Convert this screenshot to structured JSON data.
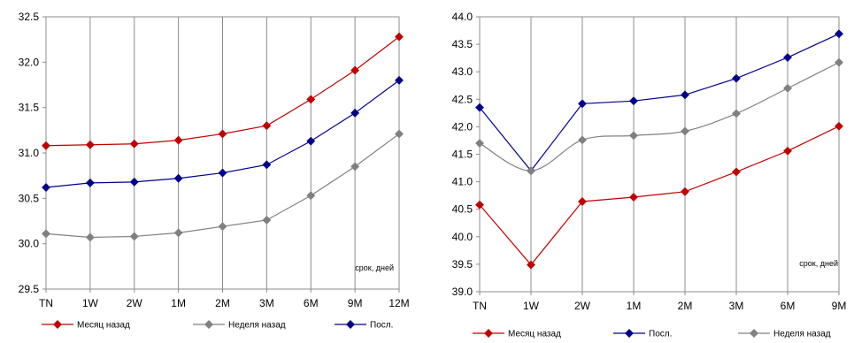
{
  "chart_data": [
    {
      "type": "line",
      "categories": [
        "TN",
        "1W",
        "2W",
        "1M",
        "2M",
        "3M",
        "6M",
        "9M",
        "12M"
      ],
      "ylim": [
        29.5,
        32.5
      ],
      "yticks": [
        "29.5",
        "30.0",
        "30.5",
        "31.0",
        "31.5",
        "32.0",
        "32.5"
      ],
      "yticks_values": [
        29.5,
        30.0,
        30.5,
        31.0,
        31.5,
        32.0,
        32.5
      ],
      "grid": "vertical",
      "annotation": "срок, дней",
      "legend_position": "bottom",
      "series": [
        {
          "name": "Месяц назад",
          "color": "#c00000",
          "smooth": false,
          "values": [
            31.08,
            31.09,
            31.1,
            31.14,
            31.21,
            31.3,
            31.59,
            31.91,
            32.28
          ]
        },
        {
          "name": "Неделя назад",
          "color": "#808080",
          "smooth": false,
          "values": [
            30.11,
            30.07,
            30.08,
            30.12,
            30.19,
            30.26,
            30.53,
            30.85,
            31.21
          ]
        },
        {
          "name": "Посл.",
          "color": "#00008b",
          "smooth": false,
          "values": [
            30.62,
            30.67,
            30.68,
            30.72,
            30.78,
            30.87,
            31.13,
            31.44,
            31.8
          ]
        }
      ]
    },
    {
      "type": "line",
      "categories": [
        "TN",
        "1W",
        "2W",
        "1M",
        "2M",
        "3M",
        "6M",
        "9M"
      ],
      "ylim": [
        39.0,
        44.0
      ],
      "yticks": [
        "39.0",
        "39.5",
        "40.0",
        "40.5",
        "41.0",
        "41.5",
        "42.0",
        "42.5",
        "43.0",
        "43.5",
        "44.0"
      ],
      "yticks_values": [
        39.0,
        39.5,
        40.0,
        40.5,
        41.0,
        41.5,
        42.0,
        42.5,
        43.0,
        43.5,
        44.0
      ],
      "grid": "vertical",
      "annotation": "срок, дней",
      "legend_position": "bottom",
      "series": [
        {
          "name": "Месяц назад",
          "color": "#c00000",
          "smooth": false,
          "values": [
            40.58,
            39.49,
            40.64,
            40.72,
            40.82,
            41.18,
            41.56,
            42.01
          ]
        },
        {
          "name": "Посл.",
          "color": "#00008b",
          "smooth": false,
          "values": [
            42.35,
            41.2,
            42.42,
            42.47,
            42.58,
            42.88,
            43.26,
            43.69
          ]
        },
        {
          "name": "Неделя назад",
          "color": "#808080",
          "smooth": true,
          "values": [
            41.7,
            41.2,
            41.76,
            41.84,
            41.92,
            42.24,
            42.7,
            43.17
          ]
        }
      ]
    }
  ]
}
